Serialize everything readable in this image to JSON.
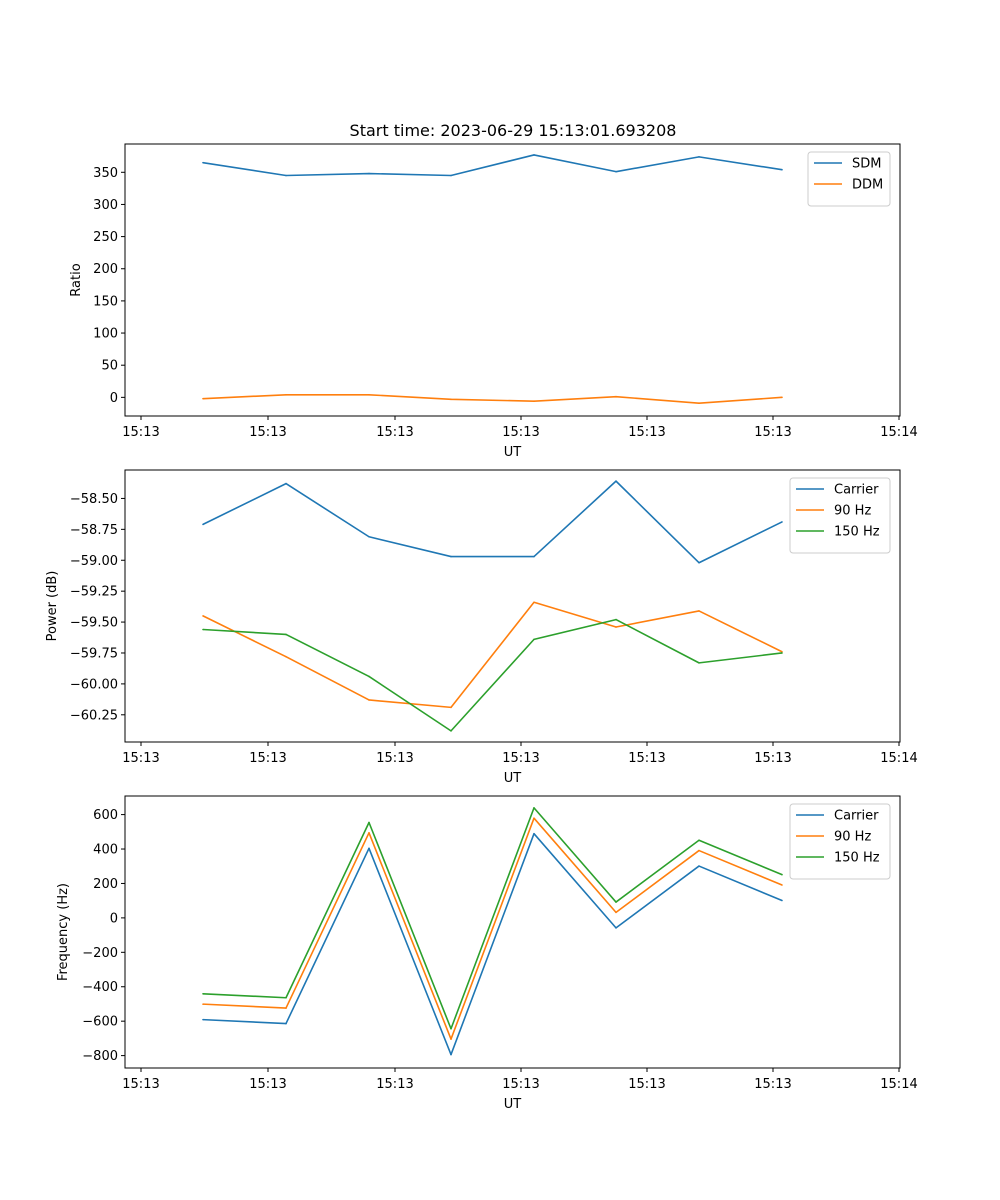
{
  "figure_title": "Start time: 2023-06-29 15:13:01.693208",
  "chart_data": [
    {
      "type": "line",
      "title": "Start time: 2023-06-29 15:13:01.693208",
      "xlabel": "UT",
      "ylabel": "Ratio",
      "x_tick_labels": [
        "15:13",
        "15:13",
        "15:13",
        "15:13",
        "15:13",
        "15:13",
        "15:14"
      ],
      "y_ticks": [
        0,
        50,
        100,
        150,
        200,
        250,
        300,
        350
      ],
      "ylim": [
        -29,
        394
      ],
      "grid": false,
      "legend_position": "top-right",
      "series": [
        {
          "name": "SDM",
          "color": "#1f77b4",
          "values": [
            365,
            345,
            348,
            345,
            377,
            351,
            374,
            354
          ]
        },
        {
          "name": "DDM",
          "color": "#ff7f0e",
          "values": [
            -2,
            4,
            4,
            -3,
            -6,
            1,
            -9,
            0
          ]
        }
      ]
    },
    {
      "type": "line",
      "xlabel": "UT",
      "ylabel": "Power (dB)",
      "x_tick_labels": [
        "15:13",
        "15:13",
        "15:13",
        "15:13",
        "15:13",
        "15:13",
        "15:14"
      ],
      "y_ticks": [
        -60.25,
        -60.0,
        -59.75,
        -59.5,
        -59.25,
        -59.0,
        -58.75,
        -58.5
      ],
      "y_tick_labels": [
        "−60.25",
        "−60.00",
        "−59.75",
        "−59.50",
        "−59.25",
        "−59.00",
        "−58.75",
        "−58.50"
      ],
      "ylim": [
        -60.47,
        -58.27
      ],
      "grid": false,
      "legend_position": "top-right",
      "series": [
        {
          "name": "Carrier",
          "color": "#1f77b4",
          "values": [
            -58.71,
            -58.38,
            -58.81,
            -58.97,
            -58.97,
            -58.36,
            -59.02,
            -58.69
          ]
        },
        {
          "name": "90 Hz",
          "color": "#ff7f0e",
          "values": [
            -59.45,
            -59.78,
            -60.13,
            -60.19,
            -59.34,
            -59.54,
            -59.41,
            -59.74
          ]
        },
        {
          "name": "150 Hz",
          "color": "#2ca02c",
          "values": [
            -59.56,
            -59.6,
            -59.94,
            -60.38,
            -59.64,
            -59.48,
            -59.83,
            -59.75
          ]
        }
      ]
    },
    {
      "type": "line",
      "xlabel": "UT",
      "ylabel": "Frequency (Hz)",
      "x_tick_labels": [
        "15:13",
        "15:13",
        "15:13",
        "15:13",
        "15:13",
        "15:13",
        "15:14"
      ],
      "y_ticks": [
        -800,
        -600,
        -400,
        -200,
        0,
        200,
        400,
        600
      ],
      "y_tick_labels": [
        "−800",
        "−600",
        "−400",
        "−200",
        "0",
        "200",
        "400",
        "600"
      ],
      "ylim": [
        -872,
        708
      ],
      "grid": false,
      "legend_position": "top-right",
      "series": [
        {
          "name": "Carrier",
          "color": "#1f77b4",
          "values": [
            -591,
            -614,
            404,
            -794,
            489,
            -58,
            301,
            101
          ]
        },
        {
          "name": "90 Hz",
          "color": "#ff7f0e",
          "values": [
            -501,
            -524,
            494,
            -704,
            579,
            32,
            391,
            191
          ]
        },
        {
          "name": "150 Hz",
          "color": "#2ca02c",
          "values": [
            -441,
            -464,
            554,
            -644,
            639,
            92,
            451,
            251
          ]
        }
      ]
    }
  ]
}
